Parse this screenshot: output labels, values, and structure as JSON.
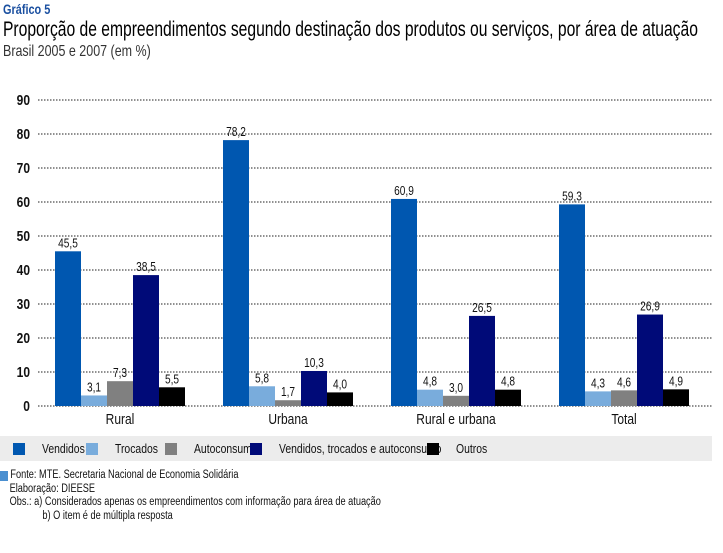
{
  "header": {
    "label": "Gráfico 5",
    "title": "Proporção de empreendimentos segundo destinação dos produtos ou serviços, por área de atuação",
    "subtitle": "Brasil 2005 e 2007 (em %)"
  },
  "chart_data": {
    "type": "bar",
    "title": "Proporção de empreendimentos segundo destinação dos produtos ou serviços, por área de atuação",
    "subtitle": "Brasil 2005 e 2007 (em %)",
    "xlabel": "",
    "ylabel": "",
    "ylim": [
      0,
      90
    ],
    "yticks": [
      0,
      10,
      20,
      30,
      40,
      50,
      60,
      70,
      80,
      90
    ],
    "grid": true,
    "legend_position": "bottom",
    "categories": [
      "Rural",
      "Urbana",
      "Rural e urbana",
      "Total"
    ],
    "series": [
      {
        "name": "Vendidos",
        "color": "#0057b0",
        "values": [
          45.5,
          78.2,
          60.9,
          59.3
        ],
        "labels": [
          "45,5",
          "78,2",
          "60,9",
          "59,3"
        ]
      },
      {
        "name": "Trocados",
        "color": "#79acdc",
        "values": [
          3.1,
          5.8,
          4.8,
          4.3
        ],
        "labels": [
          "3,1",
          "5,8",
          "4,8",
          "4,3"
        ]
      },
      {
        "name": "Autoconsumo",
        "color": "#808080",
        "values": [
          7.3,
          1.7,
          3.0,
          4.6
        ],
        "labels": [
          "7,3",
          "1,7",
          "3,0",
          "4,6"
        ]
      },
      {
        "name": "Vendidos, trocados e autoconsumo",
        "color": "#000a78",
        "values": [
          38.5,
          10.3,
          26.5,
          26.9
        ],
        "labels": [
          "38,5",
          "10,3",
          "26,5",
          "26,9"
        ]
      },
      {
        "name": "Outros",
        "color": "#000000",
        "values": [
          5.5,
          4.0,
          4.8,
          4.9
        ],
        "labels": [
          "5,5",
          "4,0",
          "4,8",
          "4,9"
        ]
      }
    ]
  },
  "notes": {
    "source": "Fonte: MTE. Secretaria Nacional de Economia Solidária",
    "elaboration": "Elaboração: DIEESE",
    "obs_label": "Obs.:",
    "obs_a": "a) Considerados apenas os empreendimentos com informação para área de atuação",
    "obs_b": "b) O item é de múltipla resposta"
  }
}
